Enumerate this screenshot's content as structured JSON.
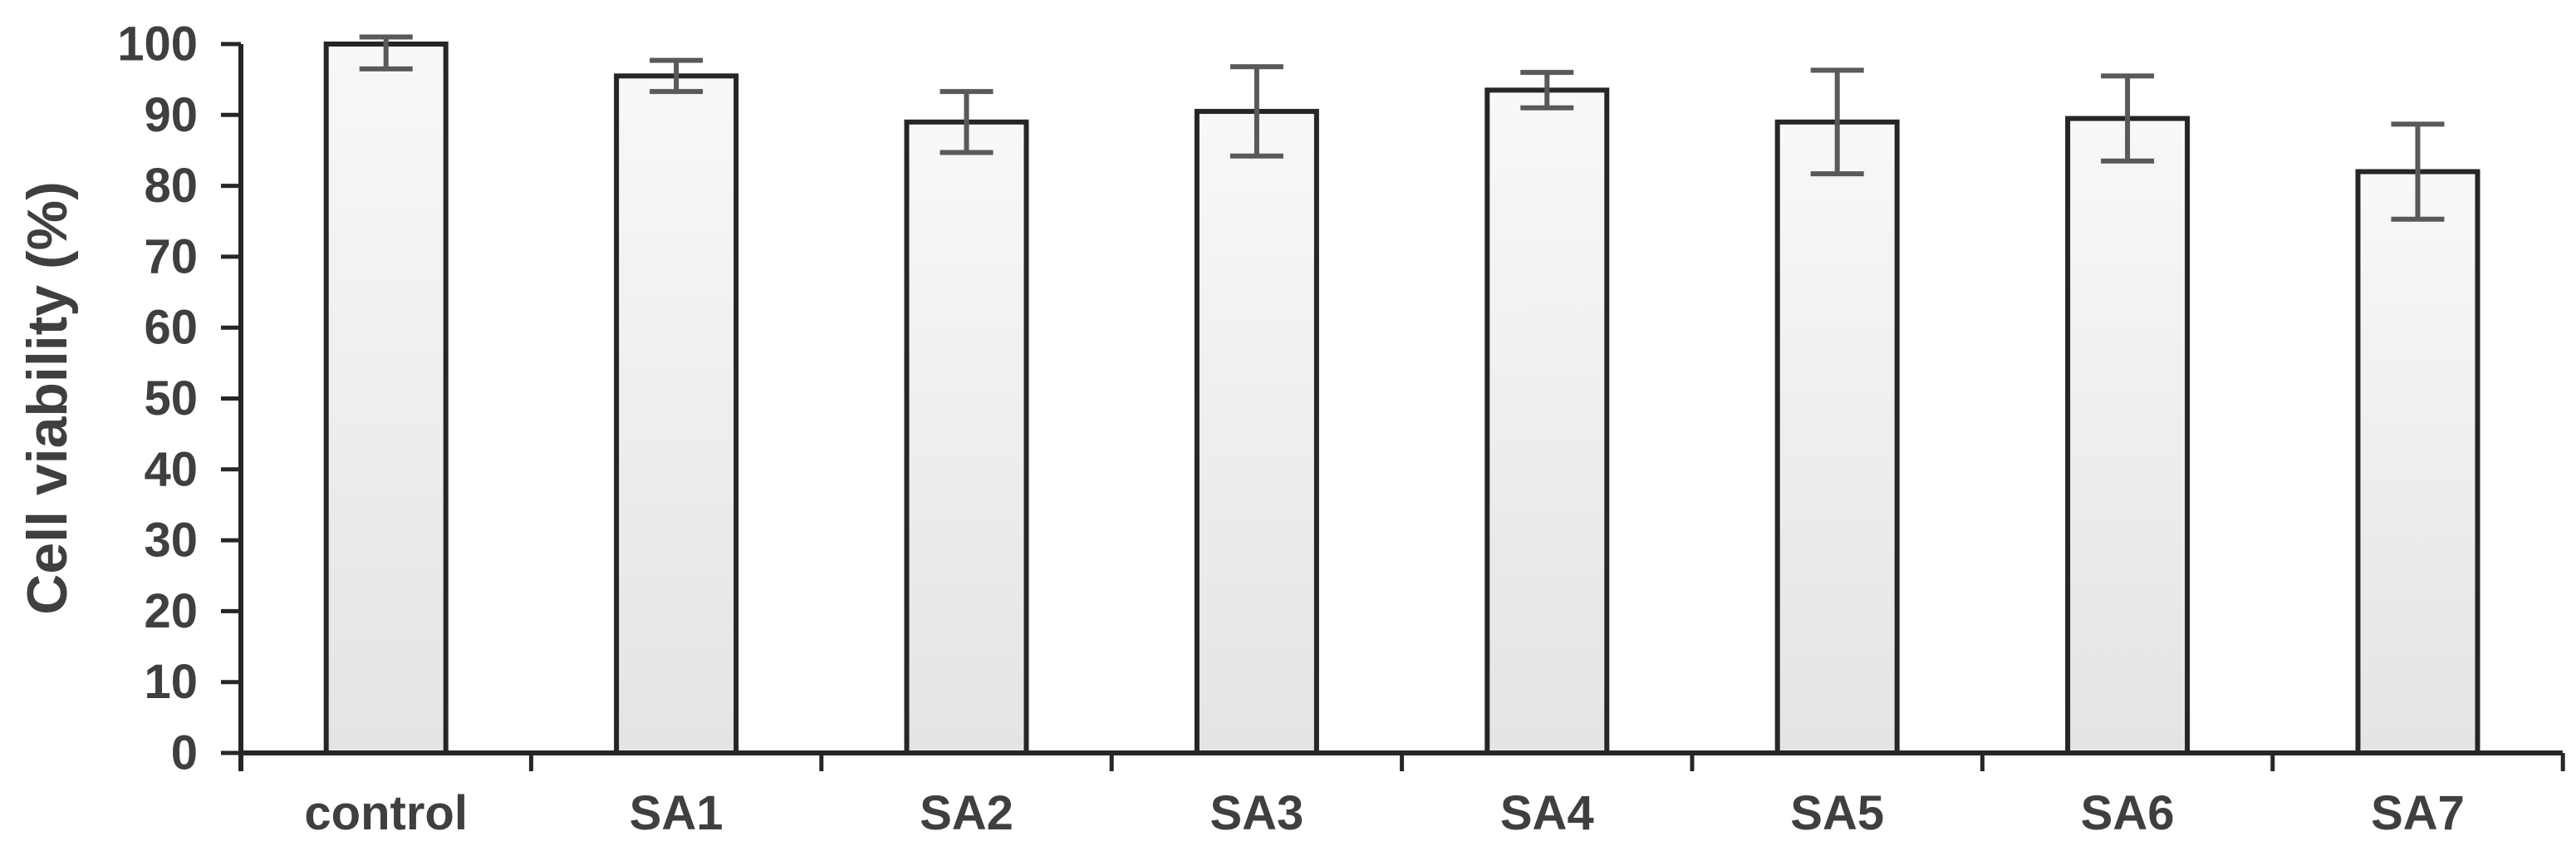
{
  "chart_data": {
    "type": "bar",
    "title": "",
    "ylabel": "Cell viability (%)",
    "xlabel": "",
    "categories": [
      "control",
      "SA1",
      "SA2",
      "SA3",
      "SA4",
      "SA5",
      "SA6",
      "SA7"
    ],
    "values": [
      100,
      95.5,
      89,
      90.5,
      93.5,
      89,
      89.5,
      82
    ],
    "error_plus": [
      1,
      2.2,
      4.3,
      6.3,
      2.5,
      7.3,
      6,
      6.7
    ],
    "error_minus": [
      3.5,
      2.2,
      4.3,
      6.3,
      2.5,
      7.3,
      6,
      6.7
    ],
    "yticks": [
      0,
      10,
      20,
      30,
      40,
      50,
      60,
      70,
      80,
      90,
      100
    ],
    "ylim": [
      0,
      100
    ],
    "grid": false,
    "legend": null,
    "bar_fill_top": "#f8f8f8",
    "bar_fill_bottom": "#e4e4e4",
    "bar_stroke": "#262626",
    "error_color": "#595959",
    "axis_color": "#262626",
    "text_color": "#3f3f3f"
  }
}
